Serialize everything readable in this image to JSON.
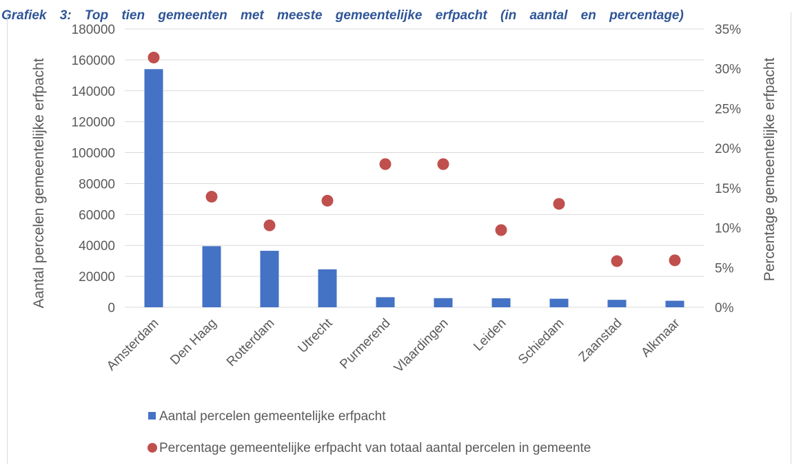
{
  "caption": "Grafiek 3: Top tien gemeenten met meeste gemeentelijke erfpacht (in aantal en percentage)",
  "chart_data": {
    "type": "bar",
    "categories": [
      "Amsterdam",
      "Den Haag",
      "Rotterdam",
      "Utrecht",
      "Purmerend",
      "Vlaardingen",
      "Leiden",
      "Schiedam",
      "Zaanstad",
      "Alkmaar"
    ],
    "series": [
      {
        "name": "Aantal percelen gemeentelijke erfpacht",
        "type": "bar",
        "axis": "left",
        "color": "#4472c4",
        "values": [
          154000,
          39500,
          36500,
          24500,
          6500,
          5900,
          5800,
          5500,
          4800,
          4200
        ]
      },
      {
        "name": "Percentage gemeentelijke erfpacht van totaal aantal percelen in gemeente",
        "type": "scatter",
        "axis": "right",
        "color": "#c0504d",
        "values": [
          0.314,
          0.139,
          0.103,
          0.134,
          0.18,
          0.18,
          0.097,
          0.13,
          0.058,
          0.059
        ]
      }
    ],
    "ylabel": "Aantal percelen gemeentelijke erfpacht",
    "y2label": "Percentage gemeentelijke erfpacht",
    "ylim": [
      0,
      180000
    ],
    "y2lim": [
      0,
      0.35
    ],
    "yticks": [
      "0",
      "20000",
      "40000",
      "60000",
      "80000",
      "100000",
      "120000",
      "140000",
      "160000",
      "180000"
    ],
    "y2ticks": [
      "0%",
      "5%",
      "10%",
      "15%",
      "20%",
      "25%",
      "30%",
      "35%"
    ],
    "grid": true,
    "legend_position": "bottom"
  }
}
